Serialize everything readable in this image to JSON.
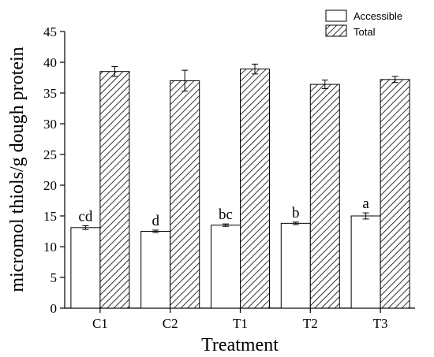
{
  "chart_data": {
    "type": "bar",
    "xlabel": "Treatment",
    "ylabel": "micromol thiols/g dough protein",
    "ylim": [
      0,
      45
    ],
    "yticks": [
      0,
      5,
      10,
      15,
      20,
      25,
      30,
      35,
      40,
      45
    ],
    "categories": [
      "C1",
      "C2",
      "T1",
      "T2",
      "T3"
    ],
    "series": [
      {
        "name": "Accessible",
        "fill": "white",
        "values": [
          13.1,
          12.5,
          13.5,
          13.8,
          15.0
        ],
        "errors": [
          0.3,
          0.2,
          0.2,
          0.2,
          0.5
        ],
        "labels": [
          "cd",
          "d",
          "bc",
          "b",
          "a"
        ]
      },
      {
        "name": "Total",
        "fill": "hatched",
        "values": [
          38.5,
          37.0,
          38.9,
          36.4,
          37.2
        ],
        "errors": [
          0.8,
          1.7,
          0.8,
          0.7,
          0.5
        ]
      }
    ],
    "legend_position": "top-right",
    "grid": false
  }
}
